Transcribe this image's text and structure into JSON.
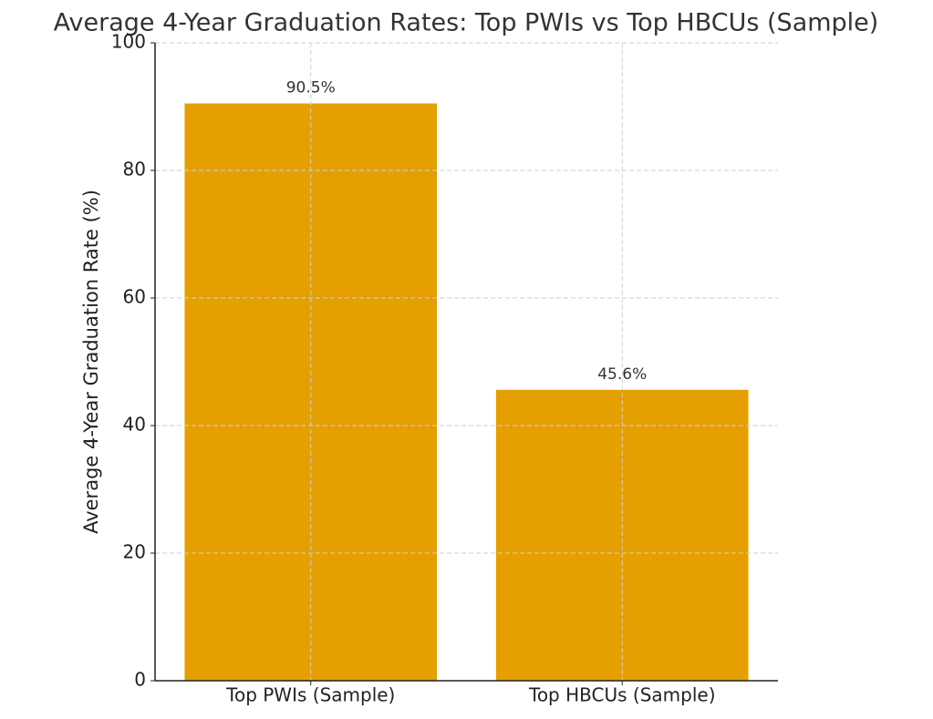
{
  "chart_data": {
    "type": "bar",
    "title": "Average 4-Year Graduation Rates: Top PWIs vs Top HBCUs (Sample)",
    "y_label": "Average 4-Year Graduation Rate (%)",
    "categories": [
      "Top PWIs (Sample)",
      "Top HBCUs (Sample)"
    ],
    "values": [
      90.5,
      45.6
    ],
    "value_labels": [
      "90.5%",
      "45.6%"
    ],
    "color": "#e5a000",
    "ylim": [
      0,
      100
    ],
    "yticks": [
      0,
      20,
      40,
      60,
      80,
      100
    ],
    "grid": true
  }
}
